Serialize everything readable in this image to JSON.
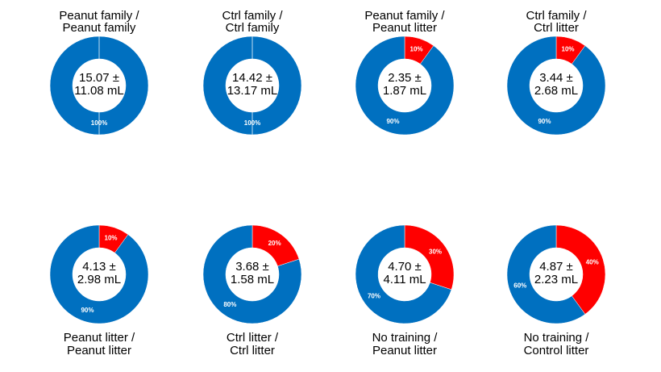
{
  "chart_data": [
    {
      "type": "donut",
      "title": [
        "Peanut family /",
        "Peanut family"
      ],
      "center_text": [
        "15.07 ±",
        "11.08 mL"
      ],
      "values": [
        100
      ],
      "value_labels": [
        "100%"
      ],
      "colors": [
        "#0070c0"
      ]
    },
    {
      "type": "donut",
      "title": [
        "Ctrl family /",
        "Ctrl family"
      ],
      "center_text": [
        "14.42 ±",
        "13.17 mL"
      ],
      "values": [
        100
      ],
      "value_labels": [
        "100%"
      ],
      "colors": [
        "#0070c0"
      ]
    },
    {
      "type": "donut",
      "title": [
        "Peanut family /",
        "Peanut litter"
      ],
      "center_text": [
        "2.35 ±",
        "1.87 mL"
      ],
      "values": [
        10,
        90
      ],
      "value_labels": [
        "10%",
        "90%"
      ],
      "colors": [
        "#ff0000",
        "#0070c0"
      ]
    },
    {
      "type": "donut",
      "title": [
        "Ctrl family /",
        "Ctrl litter"
      ],
      "center_text": [
        "3.44 ±",
        "2.68 mL"
      ],
      "values": [
        10,
        90
      ],
      "value_labels": [
        "10%",
        "90%"
      ],
      "colors": [
        "#ff0000",
        "#0070c0"
      ]
    },
    {
      "type": "donut",
      "title": [
        "Peanut litter /",
        "Peanut litter"
      ],
      "center_text": [
        "4.13 ±",
        "2.98 mL"
      ],
      "values": [
        10,
        90
      ],
      "value_labels": [
        "10%",
        "90%"
      ],
      "colors": [
        "#ff0000",
        "#0070c0"
      ]
    },
    {
      "type": "donut",
      "title": [
        "Ctrl litter /",
        "Ctrl litter"
      ],
      "center_text": [
        "3.68 ±",
        "1.58 mL"
      ],
      "values": [
        20,
        80
      ],
      "value_labels": [
        "20%",
        "80%"
      ],
      "colors": [
        "#ff0000",
        "#0070c0"
      ]
    },
    {
      "type": "donut",
      "title": [
        "No training /",
        "Peanut litter"
      ],
      "center_text": [
        "4.70 ±",
        "4.11 mL"
      ],
      "values": [
        30,
        70
      ],
      "value_labels": [
        "30%",
        "70%"
      ],
      "colors": [
        "#ff0000",
        "#0070c0"
      ]
    },
    {
      "type": "donut",
      "title": [
        "No training /",
        "Control litter"
      ],
      "center_text": [
        "4.87 ±",
        "2.23 mL"
      ],
      "values": [
        40,
        60
      ],
      "value_labels": [
        "40%",
        "60%"
      ],
      "colors": [
        "#ff0000",
        "#0070c0"
      ]
    }
  ]
}
